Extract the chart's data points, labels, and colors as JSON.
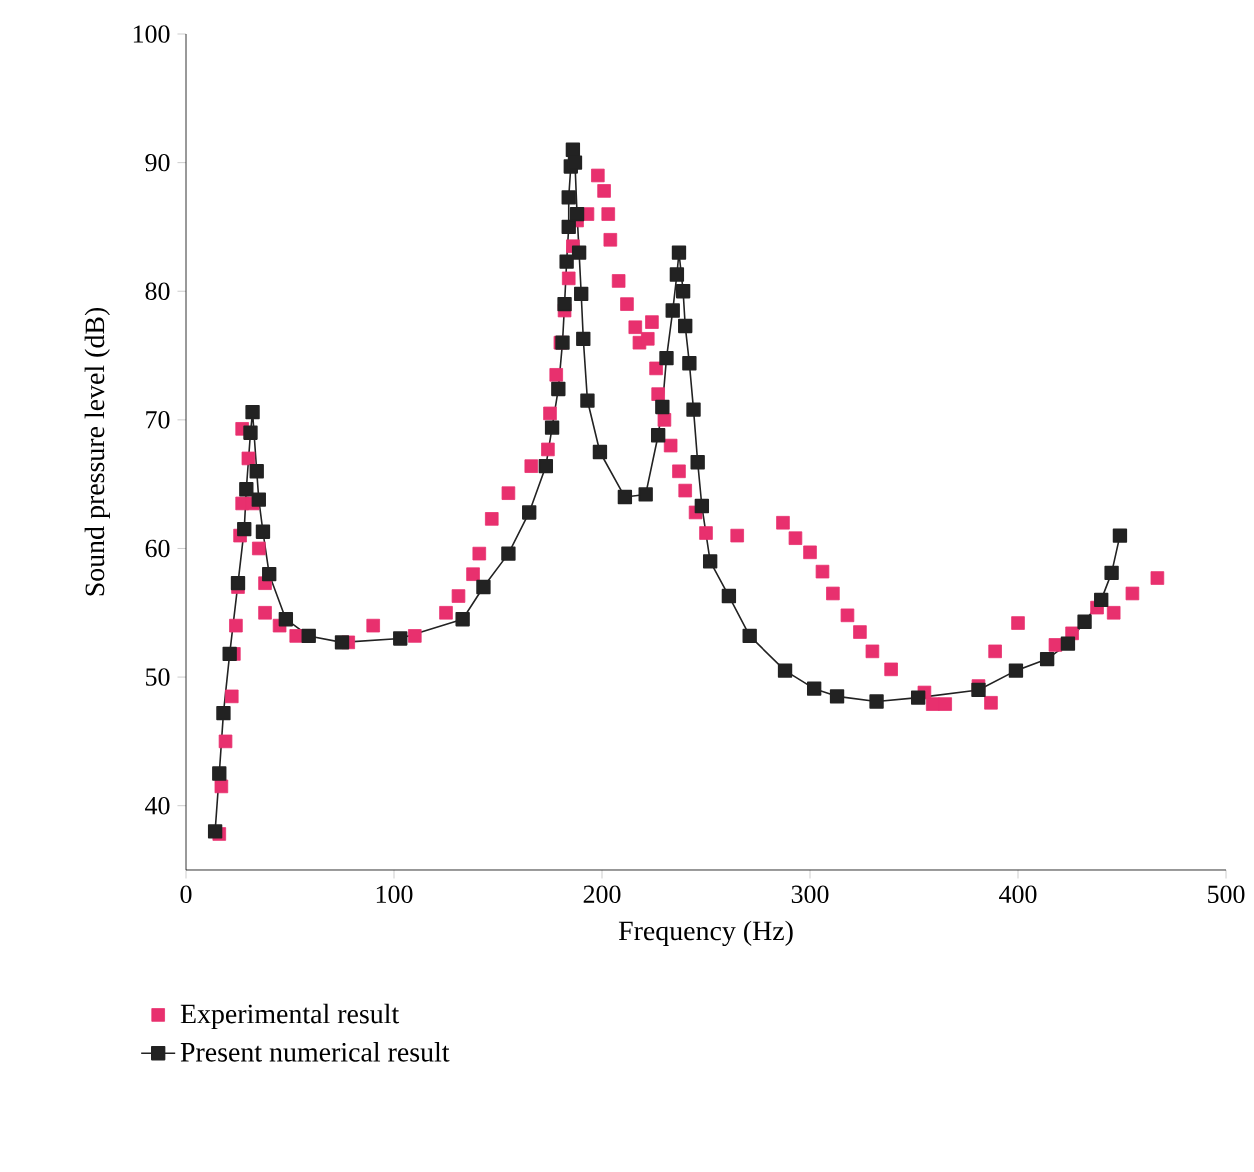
{
  "chart_data": {
    "type": "scatter",
    "xlabel": "Frequency (Hz)",
    "ylabel": "Sound pressure level (dB)",
    "xlim": [
      0,
      500
    ],
    "ylim": [
      35,
      100
    ],
    "xticks": [
      0,
      100,
      200,
      300,
      400,
      500
    ],
    "yticks": [
      40,
      50,
      60,
      70,
      80,
      90,
      100
    ],
    "legend": "bottom left",
    "marker": "square",
    "grid": false,
    "series": [
      {
        "name": "Experimental result",
        "type": "scatter",
        "color": "#e8306e",
        "x": [
          16,
          17,
          19,
          22,
          23,
          24,
          25,
          26,
          27,
          27,
          30,
          32,
          35,
          38,
          38,
          45,
          53,
          78,
          90,
          110,
          125,
          131,
          138,
          141,
          147,
          155,
          166,
          174,
          175,
          178,
          180,
          182,
          184,
          186,
          188,
          193,
          198,
          201,
          203,
          204,
          208,
          212,
          216,
          218,
          222,
          224,
          226,
          227,
          230,
          233,
          237,
          240,
          245,
          250,
          265,
          287,
          293,
          300,
          306,
          311,
          318,
          324,
          330,
          339,
          355,
          359,
          365,
          381,
          387,
          389,
          400,
          418,
          426,
          438,
          446,
          455,
          467
        ],
        "values": [
          37.8,
          41.5,
          45,
          48.5,
          51.8,
          54,
          57,
          61,
          63.5,
          69.3,
          67,
          63.5,
          60,
          57.3,
          55,
          54,
          53.2,
          52.7,
          54,
          53.2,
          55,
          56.3,
          58,
          59.6,
          62.3,
          64.3,
          66.4,
          67.7,
          70.5,
          73.5,
          76,
          78.5,
          81,
          83.5,
          85.5,
          86,
          89,
          87.8,
          86,
          84,
          80.8,
          79,
          77.2,
          76,
          76.3,
          77.6,
          74,
          72,
          70,
          68,
          66,
          64.5,
          62.8,
          61.2,
          61,
          62,
          60.8,
          59.7,
          58.2,
          56.5,
          54.8,
          53.5,
          52,
          50.6,
          48.8,
          47.9,
          47.9,
          49.3,
          48,
          52,
          54.2,
          52.5,
          53.4,
          55.4,
          55,
          56.5,
          57.7
        ]
      },
      {
        "name": "Present numerical result",
        "type": "line",
        "color": "#222222",
        "x": [
          14,
          16,
          18,
          21,
          25,
          28,
          29,
          31,
          32,
          34,
          35,
          37,
          40,
          48,
          59,
          75,
          103,
          133,
          143,
          155,
          165,
          173,
          176,
          179,
          181,
          182,
          183,
          184,
          184,
          185,
          186,
          187,
          188,
          189,
          190,
          191,
          193,
          199,
          211,
          221,
          227,
          229,
          231,
          234,
          236,
          237,
          239,
          240,
          242,
          244,
          246,
          248,
          252,
          261,
          271,
          288,
          302,
          313,
          332,
          352,
          381,
          399,
          414,
          424,
          432,
          440,
          445,
          449
        ],
        "values": [
          38,
          42.5,
          47.2,
          51.8,
          57.3,
          61.5,
          64.6,
          69,
          70.6,
          66,
          63.8,
          61.3,
          58,
          54.5,
          53.2,
          52.7,
          53,
          54.5,
          57,
          59.6,
          62.8,
          66.4,
          69.4,
          72.4,
          76,
          79,
          82.3,
          85,
          87.3,
          89.7,
          91,
          90,
          86,
          83,
          79.8,
          76.3,
          71.5,
          67.5,
          64,
          64.2,
          68.8,
          71,
          74.8,
          78.5,
          81.3,
          83,
          80,
          77.3,
          74.4,
          70.8,
          66.7,
          63.3,
          59,
          56.3,
          53.2,
          50.5,
          49.1,
          48.5,
          48.1,
          48.4,
          49,
          50.5,
          51.4,
          52.6,
          54.3,
          56,
          58.1,
          61
        ]
      }
    ]
  }
}
